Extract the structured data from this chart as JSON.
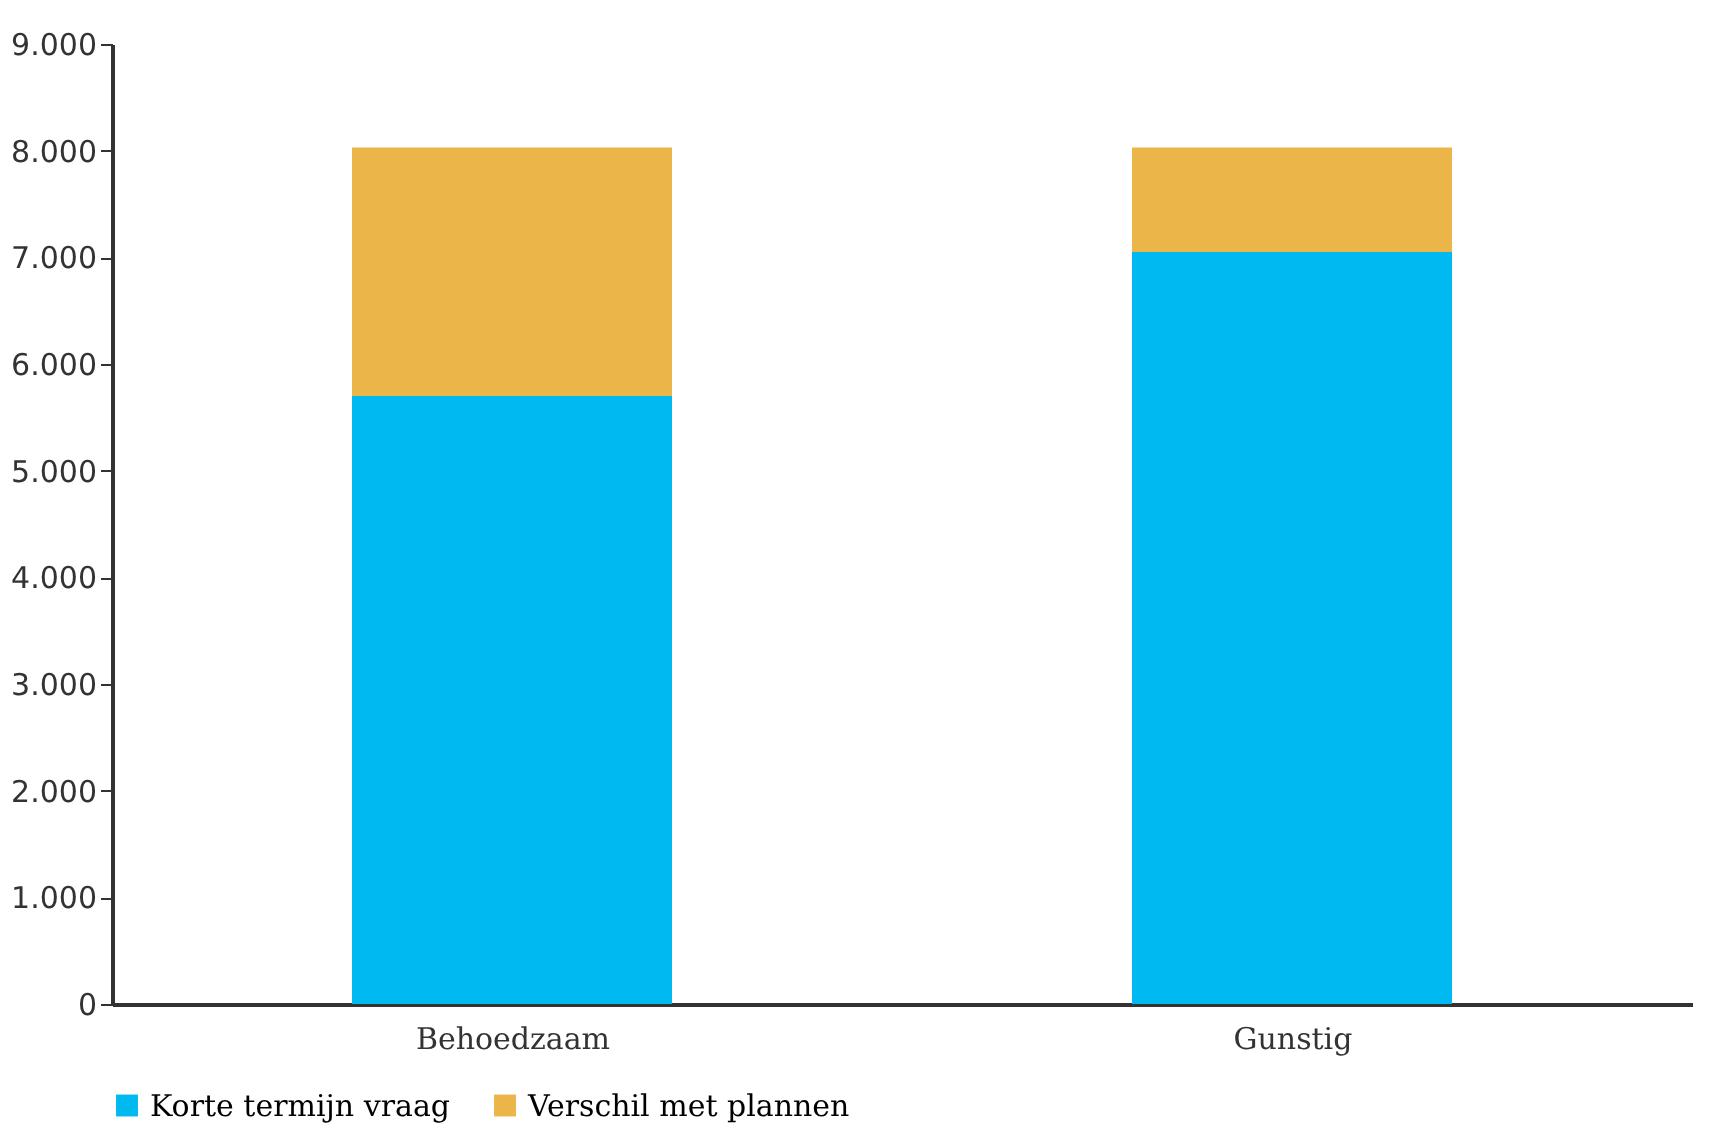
{
  "chart_data": {
    "type": "bar",
    "stacked": true,
    "categories": [
      "Behoedzaam",
      "Gunstig"
    ],
    "series": [
      {
        "name": "Korte termijn vraag",
        "color": "#00b9f0",
        "values": [
          5700,
          7050
        ]
      },
      {
        "name": "Verschil met plannen",
        "color": "#ebb54a",
        "values": [
          2330,
          980
        ]
      }
    ],
    "ylim": [
      0,
      9000
    ],
    "yticks": [
      {
        "value": 0,
        "label": "0"
      },
      {
        "value": 1000,
        "label": "1.000"
      },
      {
        "value": 2000,
        "label": "2.000"
      },
      {
        "value": 3000,
        "label": "3.000"
      },
      {
        "value": 4000,
        "label": "4.000"
      },
      {
        "value": 5000,
        "label": "5.000"
      },
      {
        "value": 6000,
        "label": "6.000"
      },
      {
        "value": 7000,
        "label": "7.000"
      },
      {
        "value": 8000,
        "label": "8.000"
      },
      {
        "value": 9000,
        "label": "9.000"
      }
    ],
    "grid": false,
    "legend": "bottom"
  }
}
